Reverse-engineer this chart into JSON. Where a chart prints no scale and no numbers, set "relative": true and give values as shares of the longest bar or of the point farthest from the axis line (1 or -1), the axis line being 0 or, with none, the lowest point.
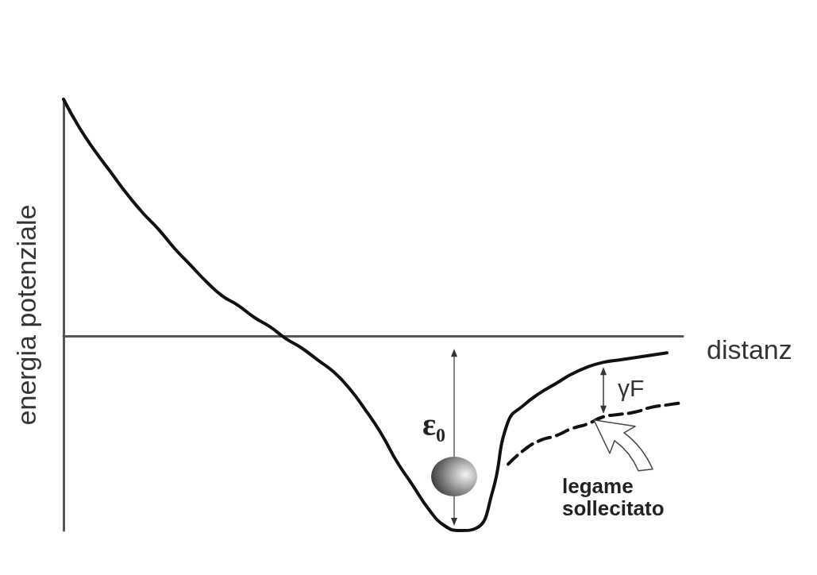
{
  "chart_data": {
    "type": "line",
    "relative": true,
    "xlabel": "distanz",
    "ylabel": "energia potenziale",
    "categories": [
      null,
      null,
      null,
      null,
      null,
      null,
      null,
      null,
      null,
      null,
      null,
      null,
      null,
      null,
      null,
      null,
      null,
      null,
      null,
      null,
      null,
      null,
      null,
      null,
      null,
      null,
      null,
      null,
      null,
      null,
      null,
      null,
      null,
      null,
      null,
      null,
      null,
      null,
      null,
      null
    ],
    "series": [
      {
        "color": "#111111",
        "line_style": "solid",
        "values": [
          1.0,
          0.88,
          0.78,
          0.69,
          0.6,
          0.52,
          0.45,
          0.37,
          0.3,
          0.23,
          0.17,
          0.13,
          0.08,
          0.04,
          -0.01,
          -0.05,
          -0.1,
          -0.15,
          -0.22,
          -0.31,
          -0.41,
          -0.53,
          -0.63,
          -0.73,
          -0.8,
          -0.82,
          -0.81,
          -0.66,
          -0.36,
          -0.29,
          -0.24,
          -0.2,
          -0.16,
          -0.13,
          -0.11,
          -0.1,
          -0.09,
          -0.08,
          -0.07,
          null
        ]
      },
      {
        "color": "#111111",
        "line_style": "dashed",
        "values": [
          null,
          null,
          null,
          null,
          null,
          null,
          null,
          null,
          null,
          null,
          null,
          null,
          null,
          null,
          null,
          null,
          null,
          null,
          null,
          null,
          null,
          null,
          null,
          null,
          null,
          null,
          null,
          null,
          -0.54,
          -0.48,
          -0.44,
          -0.42,
          -0.39,
          -0.37,
          -0.34,
          -0.33,
          -0.32,
          -0.3,
          -0.29,
          -0.28
        ]
      }
    ],
    "marker": "none",
    "annotations": [
      "ε₀",
      "γF",
      "legame sollecitato"
    ]
  }
}
